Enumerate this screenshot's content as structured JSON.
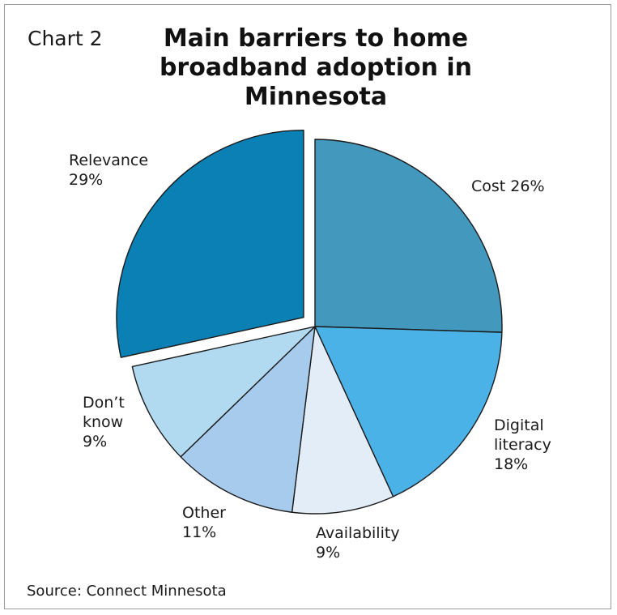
{
  "header": {
    "chart_label": "Chart 2",
    "title_line1": "Main barriers to home",
    "title_line2": "broadband adoption in Minnesota"
  },
  "footer": {
    "source": "Source: Connect Minnesota"
  },
  "chart_data": {
    "type": "pie",
    "title": "Main barriers to home broadband adoption in Minnesota",
    "slices": [
      {
        "label": "Cost",
        "value": 26,
        "label_lines": [
          "Cost 26%"
        ],
        "color": "#4298bd",
        "exploded": false
      },
      {
        "label": "Digital literacy",
        "value": 18,
        "label_lines": [
          "Digital",
          "literacy",
          "18%"
        ],
        "color": "#4ab2e6",
        "exploded": false
      },
      {
        "label": "Availability",
        "value": 9,
        "label_lines": [
          "Availability",
          "9%"
        ],
        "color": "#e3edf8",
        "exploded": false
      },
      {
        "label": "Other",
        "value": 11,
        "label_lines": [
          "Other",
          "11%"
        ],
        "color": "#a7cbec",
        "exploded": false
      },
      {
        "label": "Don’t know",
        "value": 9,
        "label_lines": [
          "Don’t",
          "know",
          "9%"
        ],
        "color": "#b1daf0",
        "exploded": false
      },
      {
        "label": "Relevance",
        "value": 29,
        "label_lines": [
          "Relevance",
          "29%"
        ],
        "color": "#0a80b5",
        "exploded": true
      }
    ],
    "start": "12 o'clock",
    "direction": "clockwise",
    "legend": "none"
  }
}
